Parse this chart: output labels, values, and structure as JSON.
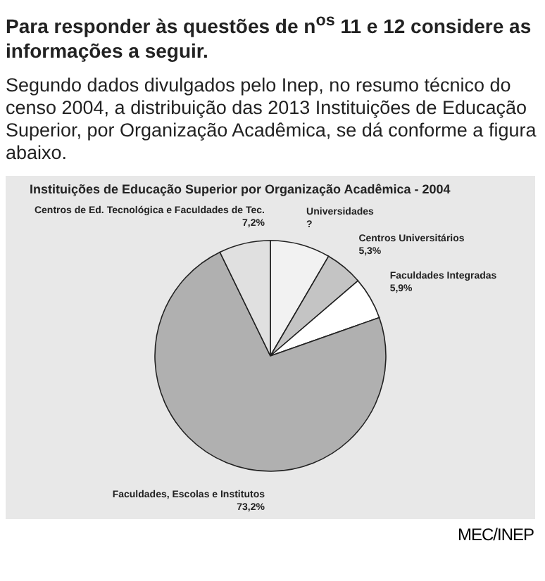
{
  "chart_data": {
    "type": "pie",
    "title": "Instituições de Educação Superior por Organização Acadêmica - 2004",
    "categories": [
      "Universidades",
      "Centros Universitários",
      "Faculdades Integradas",
      "Faculdades, Escolas e Institutos",
      "Centros de Ed. Tecnológica e Faculdades de Tec."
    ],
    "values": [
      8.4,
      5.3,
      5.9,
      73.2,
      7.2
    ],
    "colors": [
      "#f2f2f2",
      "#c4c4c4",
      "#ffffff",
      "#b0b0b0",
      "#e0e0e0"
    ],
    "value_labels": [
      "?",
      "5,3%",
      "5,9%",
      "73,2%",
      "7,2%"
    ],
    "annotations": [
      "Para responder às questões de n$^{os}$ 11 e 12 considere as informações a seguir.",
      "Segundo dados divulgados pelo Inep, no resumo técnico do censo 2004, a distribuição das 2013 Instituições de Educação Superior, por Organização Acadêmica, se dá conforme a figura abaixo.",
      "MEC/INEP"
    ]
  }
}
